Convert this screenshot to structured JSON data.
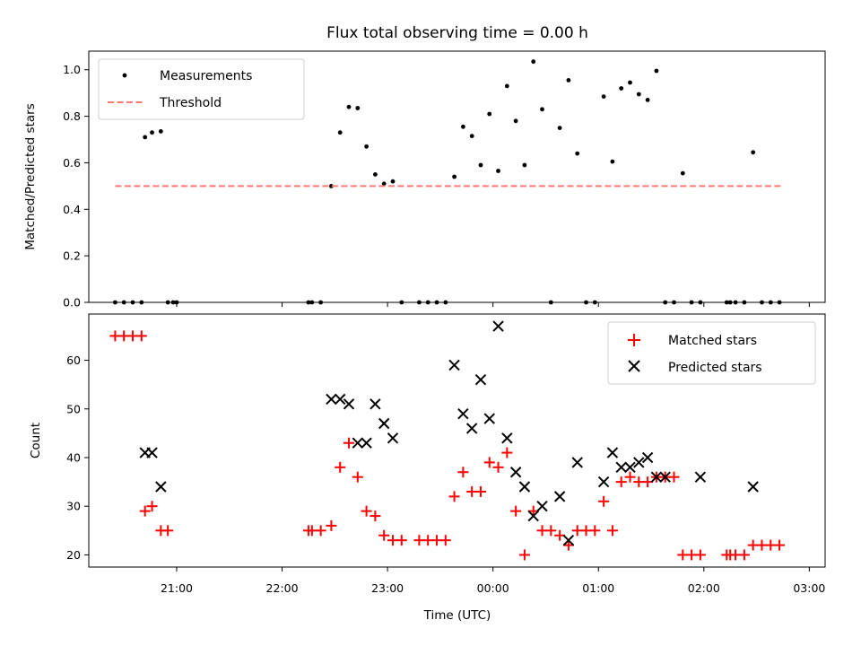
{
  "chart_data": [
    {
      "type": "scatter",
      "title": "Flux total observing time = 0.00 h",
      "xlabel": "",
      "ylabel": "Matched/Predicted stars",
      "ylim": [
        0,
        1.08
      ],
      "yticks": [
        "0.0",
        "0.2",
        "0.4",
        "0.6",
        "0.8",
        "1.0"
      ],
      "legend_position": "top-left",
      "legend": [
        "Measurements",
        "Threshold"
      ],
      "series": [
        {
          "name": "Measurements",
          "marker": "dot",
          "color": "#000000",
          "x": [
            "20:25",
            "20:30",
            "20:35",
            "20:40",
            "20:42",
            "20:46",
            "20:51",
            "20:55",
            "20:58",
            "21:00",
            "22:15",
            "22:17",
            "22:22",
            "22:28",
            "22:33",
            "22:38",
            "22:43",
            "22:48",
            "22:53",
            "22:58",
            "23:03",
            "23:08",
            "23:18",
            "23:23",
            "23:28",
            "23:33",
            "23:38",
            "23:43",
            "23:48",
            "23:53",
            "23:58",
            "00:03",
            "00:08",
            "00:13",
            "00:18",
            "00:23",
            "00:28",
            "00:33",
            "00:38",
            "00:43",
            "00:48",
            "00:53",
            "00:58",
            "01:03",
            "01:08",
            "01:13",
            "01:18",
            "01:23",
            "01:28",
            "01:33",
            "01:38",
            "01:43",
            "01:48",
            "01:53",
            "01:58",
            "02:13",
            "02:15",
            "02:18",
            "02:23",
            "02:28",
            "02:33",
            "02:38",
            "02:43"
          ],
          "y": [
            0,
            0,
            0,
            0,
            0.71,
            0.73,
            0.735,
            0,
            0,
            0,
            0,
            0,
            0,
            0.5,
            0.73,
            0.84,
            0.835,
            0.67,
            0.55,
            0.51,
            0.52,
            0,
            0,
            0,
            0,
            0,
            0.54,
            0.755,
            0.715,
            0.59,
            0.81,
            0.565,
            0.93,
            0.78,
            0.59,
            1.035,
            0.83,
            0,
            0.75,
            0.955,
            0.64,
            0,
            0,
            0.885,
            0.605,
            0.92,
            0.945,
            0.895,
            0.87,
            0.995,
            0,
            0,
            0.555,
            0,
            0,
            0,
            0,
            0,
            0,
            0.645,
            0,
            0,
            0
          ]
        },
        {
          "name": "Threshold",
          "style": "dashed",
          "color": "#ff7777",
          "x": [
            "20:25",
            "02:45"
          ],
          "y": [
            0.5,
            0.5
          ]
        }
      ]
    },
    {
      "type": "scatter",
      "title": "",
      "xlabel": "Time (UTC)",
      "ylabel": "Count",
      "ylim": [
        17.5,
        69.5
      ],
      "yticks": [
        "20",
        "30",
        "40",
        "50",
        "60"
      ],
      "xticks": [
        "21:00",
        "22:00",
        "23:00",
        "00:00",
        "01:00",
        "02:00",
        "03:00"
      ],
      "legend_position": "top-right",
      "legend": [
        "Matched stars",
        "Predicted stars"
      ],
      "series": [
        {
          "name": "Matched stars",
          "marker": "plus",
          "color": "#ff0000",
          "x": [
            "20:25",
            "20:30",
            "20:35",
            "20:40",
            "20:42",
            "20:46",
            "20:51",
            "20:55",
            "22:15",
            "22:17",
            "22:22",
            "22:28",
            "22:33",
            "22:38",
            "22:43",
            "22:48",
            "22:53",
            "22:58",
            "23:03",
            "23:08",
            "23:18",
            "23:23",
            "23:28",
            "23:33",
            "23:38",
            "23:43",
            "23:48",
            "23:53",
            "23:58",
            "00:03",
            "00:08",
            "00:13",
            "00:18",
            "00:23",
            "00:28",
            "00:33",
            "00:38",
            "00:43",
            "00:48",
            "00:53",
            "00:58",
            "01:03",
            "01:08",
            "01:13",
            "01:18",
            "01:23",
            "01:28",
            "01:33",
            "01:38",
            "01:43",
            "01:48",
            "01:53",
            "01:58",
            "02:13",
            "02:15",
            "02:18",
            "02:23",
            "02:28",
            "02:33",
            "02:38",
            "02:43"
          ],
          "y": [
            65,
            65,
            65,
            65,
            29,
            30,
            25,
            25,
            25,
            25,
            25,
            26,
            38,
            43,
            36,
            29,
            28,
            24,
            23,
            23,
            23,
            23,
            23,
            23,
            32,
            37,
            33,
            33,
            39,
            38,
            41,
            29,
            20,
            29,
            25,
            25,
            24,
            22,
            25,
            25,
            25,
            31,
            25,
            35,
            36,
            35,
            35,
            36,
            36,
            36,
            20,
            20,
            20,
            20,
            20,
            20,
            20,
            22,
            22,
            22,
            22
          ]
        },
        {
          "name": "Predicted stars",
          "marker": "x",
          "color": "#000000",
          "x": [
            "20:42",
            "20:46",
            "20:51",
            "22:28",
            "22:33",
            "22:38",
            "22:43",
            "22:48",
            "22:53",
            "22:58",
            "23:03",
            "23:38",
            "23:43",
            "23:48",
            "23:53",
            "23:58",
            "00:03",
            "00:08",
            "00:13",
            "00:18",
            "00:23",
            "00:28",
            "00:38",
            "00:43",
            "00:48",
            "01:03",
            "01:08",
            "01:13",
            "01:18",
            "01:23",
            "01:28",
            "01:33",
            "01:38",
            "01:58",
            "02:28"
          ],
          "y": [
            41,
            41,
            34,
            52,
            52,
            51,
            43,
            43,
            51,
            47,
            44,
            59,
            49,
            46,
            56,
            48,
            67,
            44,
            37,
            34,
            28,
            30,
            32,
            23,
            39,
            35,
            41,
            38,
            38,
            39,
            40,
            36,
            36,
            36,
            34
          ]
        }
      ]
    }
  ]
}
